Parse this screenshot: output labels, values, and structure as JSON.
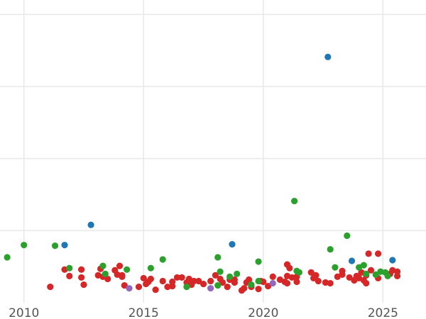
{
  "chart_data": {
    "type": "scatter",
    "title": "",
    "xlabel": "",
    "ylabel": "",
    "xlim": [
      2009.0,
      2026.8
    ],
    "ylim": [
      0,
      4.2
    ],
    "x_ticks": [
      2010,
      2015,
      2020,
      2025
    ],
    "x_tick_labels": [
      "2010",
      "2015",
      "2020",
      "2025"
    ],
    "y_gridlines": [
      1,
      2,
      3,
      4
    ],
    "grid": true,
    "legend": "none",
    "colors": {
      "red": "#d62728",
      "green": "#2ca02c",
      "blue": "#1f77b4",
      "purple": "#9467bd"
    },
    "series": [
      {
        "color": "red",
        "points": [
          [
            2011.1,
            0.22
          ],
          [
            2011.7,
            0.46
          ],
          [
            2011.9,
            0.37
          ],
          [
            2012.4,
            0.46
          ],
          [
            2012.4,
            0.35
          ],
          [
            2012.5,
            0.25
          ],
          [
            2013.1,
            0.38
          ],
          [
            2013.2,
            0.47
          ],
          [
            2013.3,
            0.36
          ],
          [
            2013.5,
            0.33
          ],
          [
            2013.8,
            0.45
          ],
          [
            2013.9,
            0.39
          ],
          [
            2014.0,
            0.51
          ],
          [
            2014.1,
            0.38
          ],
          [
            2014.1,
            0.36
          ],
          [
            2014.2,
            0.24
          ],
          [
            2014.8,
            0.22
          ],
          [
            2015.0,
            0.34
          ],
          [
            2015.1,
            0.26
          ],
          [
            2015.2,
            0.29
          ],
          [
            2015.3,
            0.33
          ],
          [
            2015.5,
            0.18
          ],
          [
            2015.8,
            0.3
          ],
          [
            2016.0,
            0.22
          ],
          [
            2016.2,
            0.23
          ],
          [
            2016.2,
            0.29
          ],
          [
            2016.4,
            0.35
          ],
          [
            2016.6,
            0.35
          ],
          [
            2016.8,
            0.28
          ],
          [
            2016.9,
            0.33
          ],
          [
            2017.0,
            0.25
          ],
          [
            2017.1,
            0.3
          ],
          [
            2017.3,
            0.3
          ],
          [
            2017.5,
            0.26
          ],
          [
            2017.8,
            0.3
          ],
          [
            2018.0,
            0.38
          ],
          [
            2018.2,
            0.33
          ],
          [
            2018.3,
            0.28
          ],
          [
            2018.5,
            0.22
          ],
          [
            2018.6,
            0.32
          ],
          [
            2018.8,
            0.28
          ],
          [
            2018.8,
            0.32
          ],
          [
            2019.1,
            0.17
          ],
          [
            2019.2,
            0.2
          ],
          [
            2019.3,
            0.28
          ],
          [
            2019.4,
            0.32
          ],
          [
            2019.5,
            0.22
          ],
          [
            2019.8,
            0.19
          ],
          [
            2019.9,
            0.3
          ],
          [
            2020.0,
            0.29
          ],
          [
            2020.2,
            0.23
          ],
          [
            2020.4,
            0.36
          ],
          [
            2020.7,
            0.32
          ],
          [
            2020.9,
            0.29
          ],
          [
            2021.0,
            0.27
          ],
          [
            2021.0,
            0.37
          ],
          [
            2021.0,
            0.53
          ],
          [
            2021.1,
            0.48
          ],
          [
            2021.2,
            0.35
          ],
          [
            2021.4,
            0.36
          ],
          [
            2021.4,
            0.29
          ],
          [
            2022.0,
            0.42
          ],
          [
            2022.1,
            0.34
          ],
          [
            2022.2,
            0.38
          ],
          [
            2022.3,
            0.3
          ],
          [
            2022.6,
            0.28
          ],
          [
            2022.8,
            0.27
          ],
          [
            2023.1,
            0.36
          ],
          [
            2023.3,
            0.44
          ],
          [
            2023.3,
            0.39
          ],
          [
            2023.6,
            0.35
          ],
          [
            2023.8,
            0.31
          ],
          [
            2023.9,
            0.37
          ],
          [
            2024.0,
            0.34
          ],
          [
            2024.1,
            0.42
          ],
          [
            2024.2,
            0.31
          ],
          [
            2024.3,
            0.27
          ],
          [
            2024.3,
            0.38
          ],
          [
            2024.5,
            0.45
          ],
          [
            2024.4,
            0.68
          ],
          [
            2024.8,
            0.68
          ],
          [
            2024.8,
            0.34
          ],
          [
            2025.3,
            0.4
          ],
          [
            2025.4,
            0.45
          ],
          [
            2025.6,
            0.37
          ],
          [
            2025.6,
            0.43
          ]
        ]
      },
      {
        "color": "green",
        "points": [
          [
            2009.3,
            0.63
          ],
          [
            2010.0,
            0.8
          ],
          [
            2011.3,
            0.79
          ],
          [
            2011.9,
            0.48
          ],
          [
            2013.3,
            0.51
          ],
          [
            2013.4,
            0.4
          ],
          [
            2014.3,
            0.46
          ],
          [
            2015.3,
            0.48
          ],
          [
            2015.8,
            0.6
          ],
          [
            2016.8,
            0.22
          ],
          [
            2018.1,
            0.63
          ],
          [
            2018.2,
            0.43
          ],
          [
            2018.1,
            0.24
          ],
          [
            2018.6,
            0.36
          ],
          [
            2018.9,
            0.4
          ],
          [
            2019.5,
            0.25
          ],
          [
            2019.8,
            0.57
          ],
          [
            2019.8,
            0.3
          ],
          [
            2021.3,
            1.41
          ],
          [
            2021.4,
            0.44
          ],
          [
            2021.5,
            0.42
          ],
          [
            2022.8,
            0.74
          ],
          [
            2023.0,
            0.49
          ],
          [
            2023.5,
            0.93
          ],
          [
            2024.0,
            0.49
          ],
          [
            2024.2,
            0.52
          ],
          [
            2024.3,
            0.4
          ],
          [
            2024.7,
            0.39
          ],
          [
            2024.9,
            0.43
          ],
          [
            2025.1,
            0.42
          ],
          [
            2025.2,
            0.37
          ]
        ]
      },
      {
        "color": "blue",
        "points": [
          [
            2011.7,
            0.8
          ],
          [
            2012.8,
            1.08
          ],
          [
            2018.7,
            0.81
          ],
          [
            2022.7,
            3.41
          ],
          [
            2023.7,
            0.58
          ],
          [
            2025.4,
            0.59
          ]
        ]
      },
      {
        "color": "purple",
        "points": [
          [
            2014.4,
            0.2
          ],
          [
            2017.8,
            0.2
          ],
          [
            2020.4,
            0.27
          ]
        ]
      }
    ]
  }
}
